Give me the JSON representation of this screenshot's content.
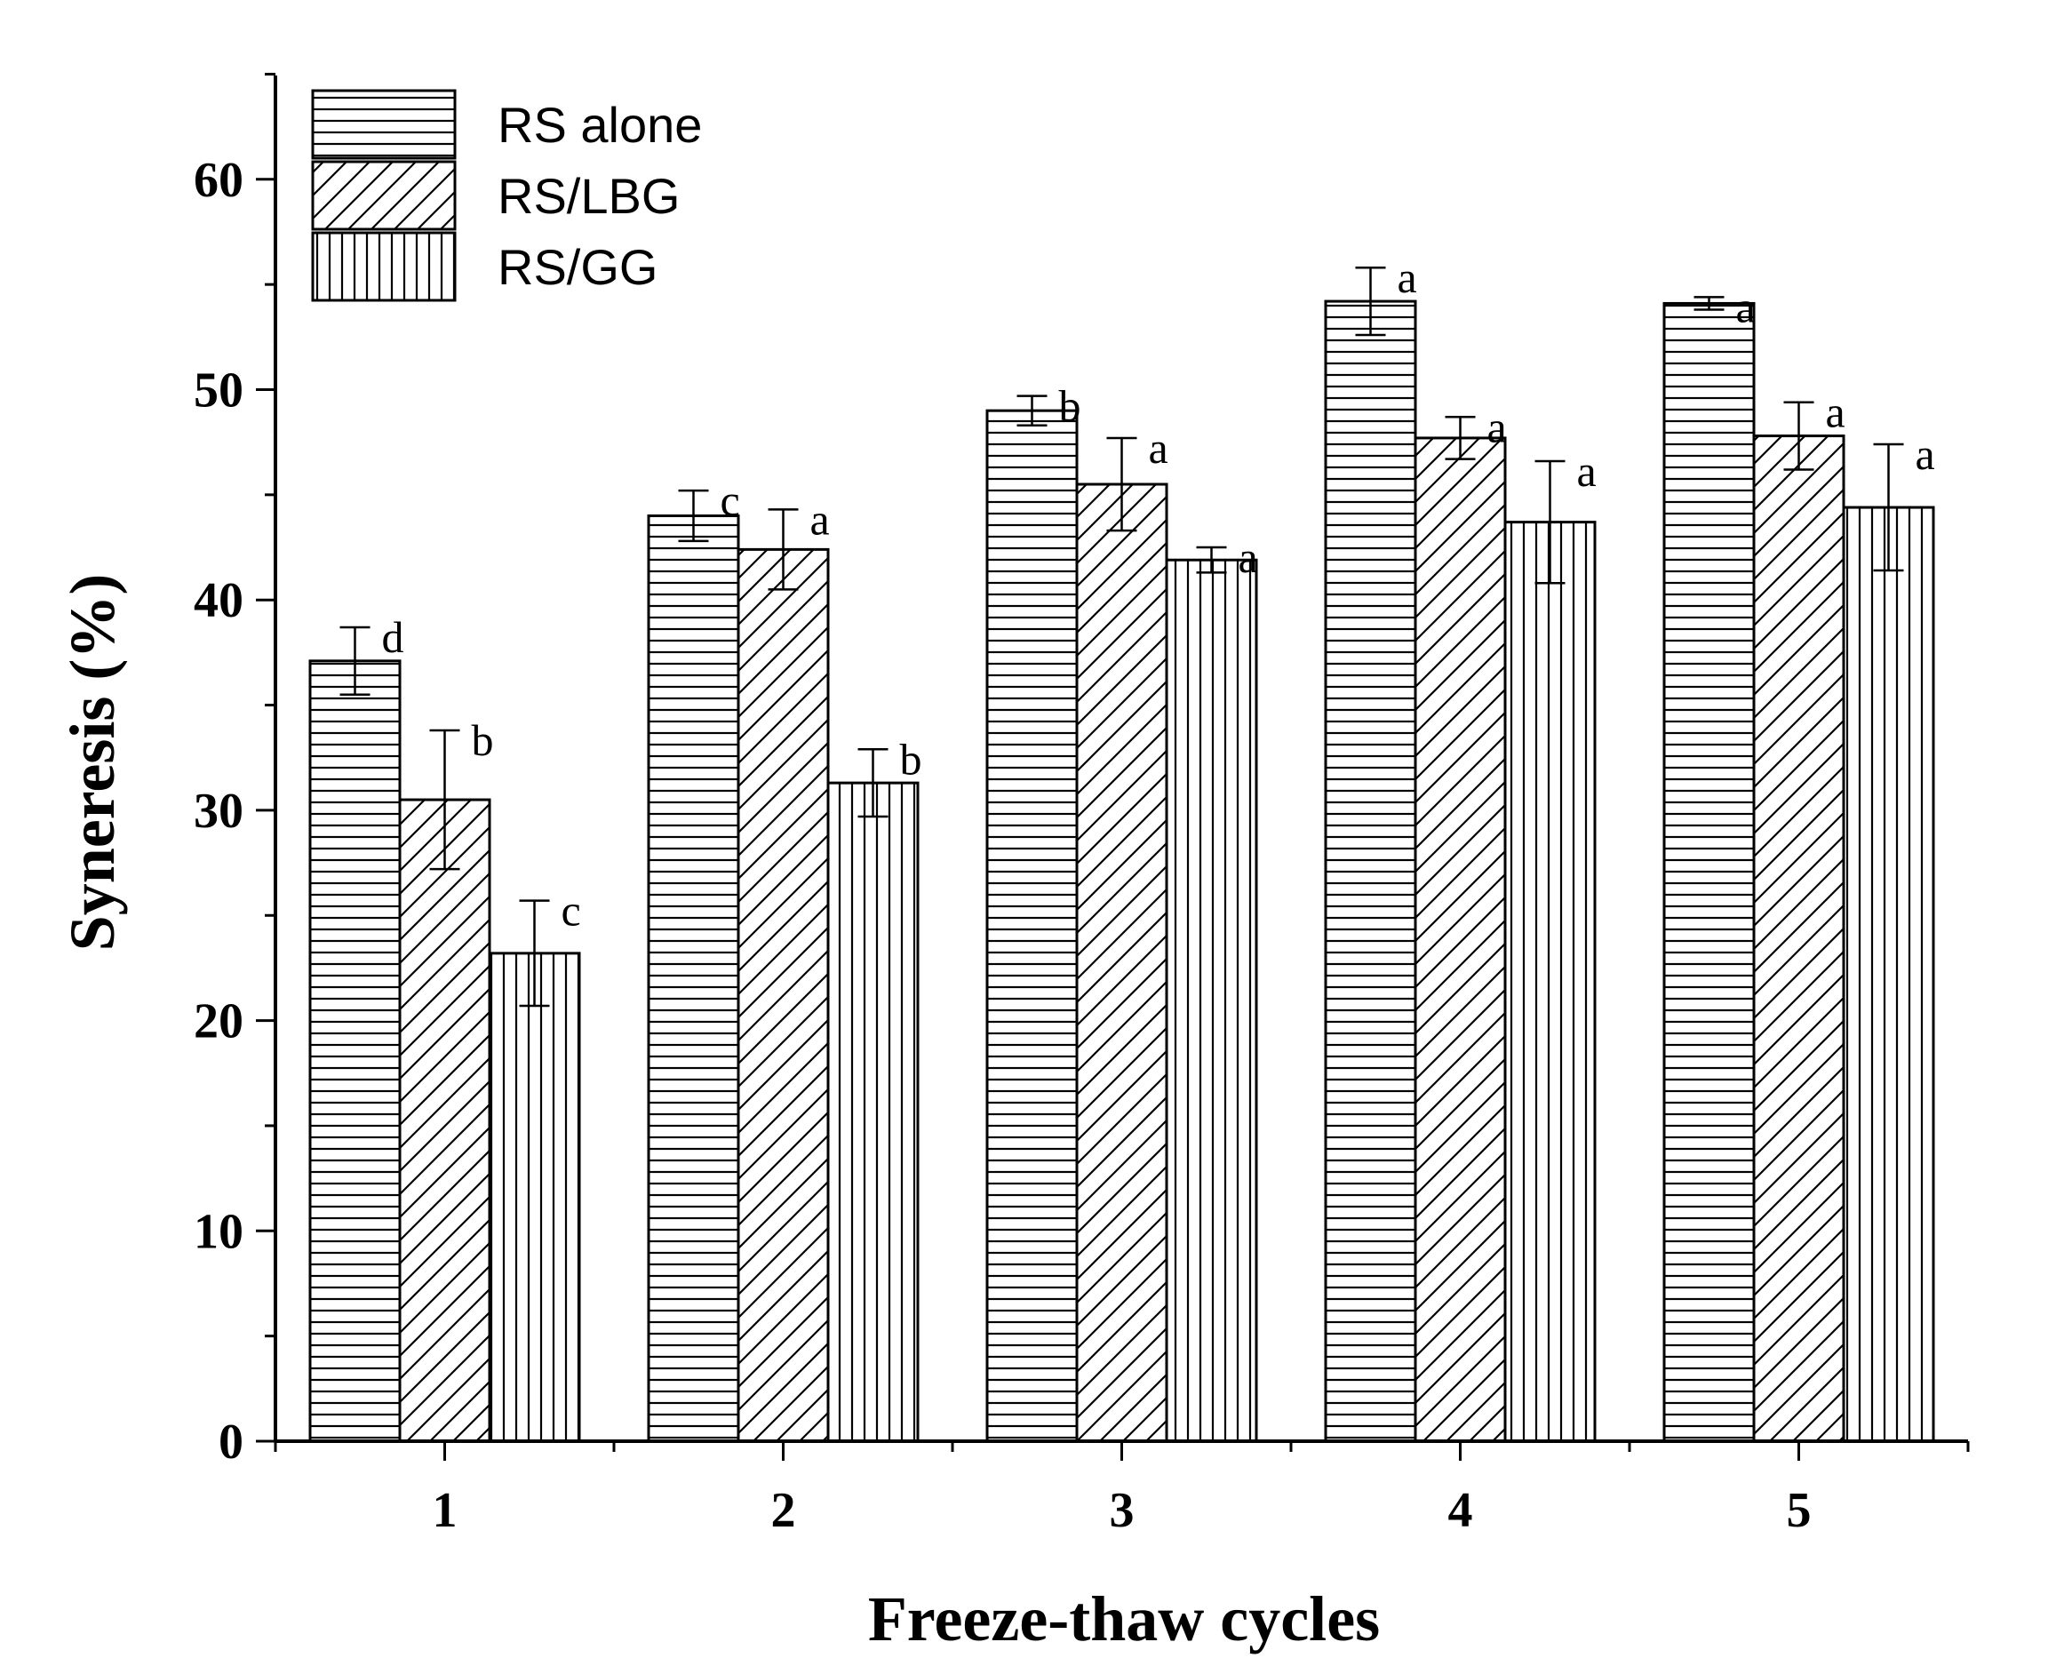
{
  "chart_data": {
    "type": "bar",
    "title": "",
    "xlabel": "Freeze-thaw cycles",
    "ylabel": "Syneresis (%)",
    "ylim": [
      0,
      65
    ],
    "yticks": [
      0,
      10,
      20,
      30,
      40,
      50,
      60
    ],
    "yticks_labels": [
      "0",
      "10",
      "20",
      "30",
      "40",
      "50",
      "60"
    ],
    "grid": false,
    "legend_position": "top-left",
    "categories": [
      "1",
      "2",
      "3",
      "4",
      "5"
    ],
    "series": [
      {
        "name": "RS alone",
        "pattern": "horizontal-lines",
        "values": [
          37.1,
          44.0,
          49.0,
          54.2,
          54.1
        ],
        "errors": [
          1.6,
          1.2,
          0.7,
          1.6,
          0.3
        ],
        "labels": [
          "d",
          "c",
          "b",
          "a",
          "a"
        ]
      },
      {
        "name": "RS/LBG",
        "pattern": "diagonal-lines",
        "values": [
          30.5,
          42.4,
          45.5,
          47.7,
          47.8
        ],
        "errors": [
          3.3,
          1.9,
          2.2,
          1.0,
          1.6
        ],
        "labels": [
          "b",
          "a",
          "a",
          "a",
          "a"
        ]
      },
      {
        "name": "RS/GG",
        "pattern": "vertical-lines",
        "values": [
          23.2,
          31.3,
          41.9,
          43.7,
          44.4
        ],
        "errors": [
          2.5,
          1.6,
          0.6,
          2.9,
          3.0
        ],
        "labels": [
          "c",
          "b",
          "a",
          "a",
          "a"
        ]
      }
    ]
  }
}
